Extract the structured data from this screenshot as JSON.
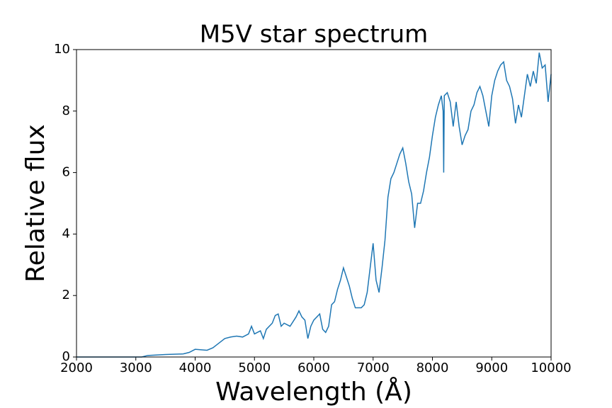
{
  "chart_data": {
    "type": "line",
    "title": "M5V star spectrum",
    "x_label": "Wavelength (Å)",
    "y_label": "Relative flux",
    "xlim": [
      2000,
      10000
    ],
    "ylim": [
      0,
      10
    ],
    "xticks": [
      2000,
      3000,
      4000,
      5000,
      6000,
      7000,
      8000,
      9000,
      10000
    ],
    "yticks": [
      0,
      2,
      4,
      6,
      8,
      10
    ],
    "series": [
      {
        "color": "#1f77b4",
        "x": [
          2000,
          2500,
          3000,
          3100,
          3200,
          3500,
          3800,
          3900,
          4000,
          4200,
          4300,
          4400,
          4500,
          4600,
          4700,
          4800,
          4900,
          4950,
          5000,
          5100,
          5150,
          5200,
          5300,
          5350,
          5400,
          5450,
          5500,
          5600,
          5700,
          5750,
          5800,
          5850,
          5900,
          5950,
          6000,
          6100,
          6150,
          6200,
          6250,
          6300,
          6350,
          6400,
          6450,
          6500,
          6550,
          6600,
          6650,
          6700,
          6800,
          6850,
          6900,
          6950,
          7000,
          7050,
          7100,
          7150,
          7200,
          7250,
          7300,
          7350,
          7400,
          7450,
          7500,
          7550,
          7600,
          7650,
          7700,
          7750,
          7800,
          7850,
          7900,
          7950,
          8000,
          8050,
          8100,
          8150,
          8180,
          8190,
          8200,
          8250,
          8300,
          8350,
          8400,
          8450,
          8500,
          8550,
          8600,
          8650,
          8700,
          8750,
          8800,
          8850,
          8900,
          8950,
          9000,
          9050,
          9100,
          9150,
          9200,
          9250,
          9300,
          9350,
          9400,
          9450,
          9500,
          9550,
          9600,
          9650,
          9700,
          9750,
          9800,
          9850,
          9900,
          9950,
          10000
        ],
        "values": [
          0,
          0,
          0,
          0,
          0.05,
          0.08,
          0.1,
          0.15,
          0.25,
          0.22,
          0.3,
          0.45,
          0.6,
          0.65,
          0.68,
          0.65,
          0.75,
          1.0,
          0.75,
          0.85,
          0.6,
          0.9,
          1.1,
          1.35,
          1.4,
          1.0,
          1.1,
          1.0,
          1.3,
          1.5,
          1.3,
          1.2,
          0.6,
          1.0,
          1.2,
          1.4,
          0.9,
          0.8,
          1.0,
          1.7,
          1.8,
          2.2,
          2.5,
          2.9,
          2.6,
          2.3,
          1.9,
          1.6,
          1.6,
          1.7,
          2.1,
          2.9,
          3.7,
          2.5,
          2.1,
          2.9,
          3.8,
          5.2,
          5.8,
          6.0,
          6.3,
          6.6,
          6.8,
          6.3,
          5.7,
          5.3,
          4.2,
          5.0,
          5.0,
          5.4,
          6.0,
          6.5,
          7.2,
          7.8,
          8.2,
          8.5,
          8.0,
          6.0,
          8.5,
          8.6,
          8.3,
          7.5,
          8.3,
          7.5,
          6.9,
          7.2,
          7.4,
          8.0,
          8.2,
          8.6,
          8.8,
          8.5,
          8.0,
          7.5,
          8.5,
          9.0,
          9.3,
          9.5,
          9.6,
          9.0,
          8.8,
          8.4,
          7.6,
          8.2,
          7.8,
          8.5,
          9.2,
          8.8,
          9.3,
          8.9,
          9.9,
          9.4,
          9.5,
          8.3,
          9.2
        ]
      }
    ]
  }
}
